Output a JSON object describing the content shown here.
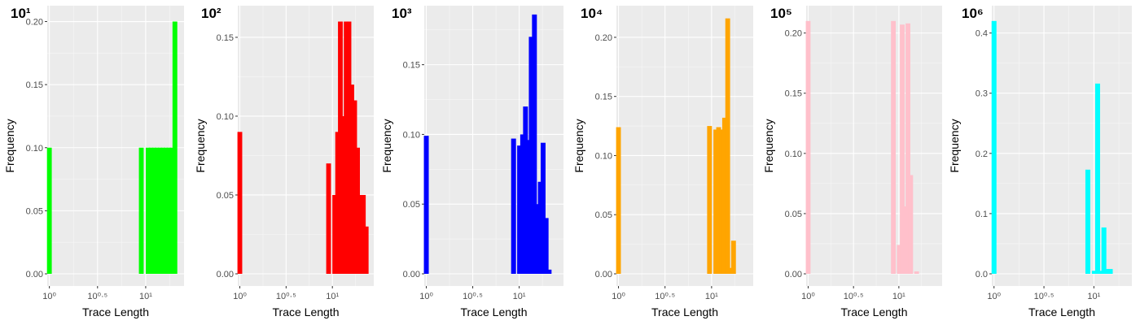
{
  "chart_data": [
    {
      "type": "bar",
      "panel_label": "10¹",
      "color": "#00ff00",
      "xlabel": "Trace Length",
      "ylabel": "Frequency",
      "x_scale": "log10",
      "xlim": [
        0.95,
        25
      ],
      "x_ticks": [
        "10⁰",
        "10⁰·⁵",
        "10¹"
      ],
      "ylim": [
        0,
        0.21
      ],
      "y_ticks": [
        "0.00",
        "0.05",
        "0.10",
        "0.15",
        "0.20"
      ],
      "y_tick_values": [
        0,
        0.05,
        0.1,
        0.15,
        0.2
      ],
      "grid": true,
      "bars": [
        {
          "x": 1.0,
          "value": 0.1
        },
        {
          "x": 9.0,
          "value": 0.1
        },
        {
          "x": 10.6,
          "value": 0.1
        },
        {
          "x": 11.4,
          "value": 0.1
        },
        {
          "x": 12.2,
          "value": 0.1
        },
        {
          "x": 13.1,
          "value": 0.1
        },
        {
          "x": 14.1,
          "value": 0.1
        },
        {
          "x": 15.1,
          "value": 0.1
        },
        {
          "x": 16.2,
          "value": 0.1
        },
        {
          "x": 17.4,
          "value": 0.1
        },
        {
          "x": 18.7,
          "value": 0.1
        },
        {
          "x": 20.1,
          "value": 0.2
        }
      ]
    },
    {
      "type": "bar",
      "panel_label": "10²",
      "color": "#ff0000",
      "xlabel": "Trace Length",
      "ylabel": "Frequency",
      "x_scale": "log10",
      "xlim": [
        0.95,
        28
      ],
      "x_ticks": [
        "10⁰",
        "10⁰·⁵",
        "10¹"
      ],
      "ylim": [
        0,
        0.168
      ],
      "y_ticks": [
        "0.00",
        "0.05",
        "0.10",
        "0.15"
      ],
      "y_tick_values": [
        0,
        0.05,
        0.1,
        0.15
      ],
      "grid": true,
      "bars": [
        {
          "x": 1.0,
          "value": 0.09
        },
        {
          "x": 9.1,
          "value": 0.07
        },
        {
          "x": 10.6,
          "value": 0.05
        },
        {
          "x": 11.4,
          "value": 0.09
        },
        {
          "x": 12.2,
          "value": 0.16
        },
        {
          "x": 13.1,
          "value": 0.1
        },
        {
          "x": 14.1,
          "value": 0.16
        },
        {
          "x": 15.1,
          "value": 0.16
        },
        {
          "x": 16.2,
          "value": 0.12
        },
        {
          "x": 17.4,
          "value": 0.11
        },
        {
          "x": 18.7,
          "value": 0.08
        },
        {
          "x": 20.1,
          "value": 0.05
        },
        {
          "x": 21.6,
          "value": 0.05
        },
        {
          "x": 23.2,
          "value": 0.03
        }
      ]
    },
    {
      "type": "bar",
      "panel_label": "10³",
      "color": "#0000ff",
      "xlabel": "Trace Length",
      "ylabel": "Frequency",
      "x_scale": "log10",
      "xlim": [
        0.95,
        30
      ],
      "x_ticks": [
        "10⁰",
        "10⁰·⁵",
        "10¹"
      ],
      "ylim": [
        0,
        0.19
      ],
      "y_ticks": [
        "0.00",
        "0.05",
        "0.10",
        "0.15"
      ],
      "y_tick_values": [
        0,
        0.05,
        0.1,
        0.15
      ],
      "grid": true,
      "bars": [
        {
          "x": 1.0,
          "value": 0.099
        },
        {
          "x": 8.7,
          "value": 0.097
        },
        {
          "x": 10.1,
          "value": 0.092
        },
        {
          "x": 10.9,
          "value": 0.1
        },
        {
          "x": 11.7,
          "value": 0.12
        },
        {
          "x": 12.6,
          "value": 0.096
        },
        {
          "x": 13.5,
          "value": 0.17
        },
        {
          "x": 14.6,
          "value": 0.186
        },
        {
          "x": 15.7,
          "value": 0.05
        },
        {
          "x": 16.9,
          "value": 0.066
        },
        {
          "x": 18.1,
          "value": 0.094
        },
        {
          "x": 19.5,
          "value": 0.04
        },
        {
          "x": 21.0,
          "value": 0.003
        }
      ]
    },
    {
      "type": "bar",
      "panel_label": "10⁴",
      "color": "#ffa500",
      "xlabel": "Trace Length",
      "ylabel": "Frequency",
      "x_scale": "log10",
      "xlim": [
        0.95,
        28
      ],
      "x_ticks": [
        "10⁰",
        "10⁰·⁵",
        "10¹"
      ],
      "ylim": [
        0,
        0.224
      ],
      "y_ticks": [
        "0.00",
        "0.05",
        "0.10",
        "0.15",
        "0.20"
      ],
      "y_tick_values": [
        0,
        0.05,
        0.1,
        0.15,
        0.2
      ],
      "grid": true,
      "bars": [
        {
          "x": 1.0,
          "value": 0.124
        },
        {
          "x": 9.5,
          "value": 0.125
        },
        {
          "x": 11.1,
          "value": 0.122
        },
        {
          "x": 11.9,
          "value": 0.124
        },
        {
          "x": 12.8,
          "value": 0.122
        },
        {
          "x": 13.8,
          "value": 0.132
        },
        {
          "x": 14.9,
          "value": 0.216
        },
        {
          "x": 16.0,
          "value": 0.005
        },
        {
          "x": 17.2,
          "value": 0.028
        }
      ]
    },
    {
      "type": "bar",
      "panel_label": "10⁵",
      "color": "#ffc0cb",
      "xlabel": "Trace Length",
      "ylabel": "Frequency",
      "x_scale": "log10",
      "xlim": [
        0.95,
        30
      ],
      "x_ticks": [
        "10⁰",
        "10⁰·⁵",
        "10¹"
      ],
      "ylim": [
        0,
        0.22
      ],
      "y_ticks": [
        "0.00",
        "0.05",
        "0.10",
        "0.15",
        "0.20"
      ],
      "y_tick_values": [
        0,
        0.05,
        0.1,
        0.15,
        0.2
      ],
      "grid": true,
      "bars": [
        {
          "x": 1.0,
          "value": 0.21
        },
        {
          "x": 8.7,
          "value": 0.21
        },
        {
          "x": 10.1,
          "value": 0.024
        },
        {
          "x": 10.9,
          "value": 0.207
        },
        {
          "x": 11.7,
          "value": 0.056
        },
        {
          "x": 12.6,
          "value": 0.208
        },
        {
          "x": 13.5,
          "value": 0.082
        },
        {
          "x": 15.7,
          "value": 0.002
        }
      ]
    },
    {
      "type": "bar",
      "panel_label": "10⁶",
      "color": "#00ffff",
      "xlabel": "Trace Length",
      "ylabel": "Frequency",
      "x_scale": "log10",
      "xlim": [
        0.95,
        24
      ],
      "x_ticks": [
        "10⁰",
        "10⁰·⁵",
        "10¹"
      ],
      "ylim": [
        0,
        0.44
      ],
      "y_ticks": [
        "0.0",
        "0.1",
        "0.2",
        "0.3",
        "0.4"
      ],
      "y_tick_values": [
        0,
        0.1,
        0.2,
        0.3,
        0.4
      ],
      "grid": true,
      "bars": [
        {
          "x": 1.0,
          "value": 0.42
        },
        {
          "x": 8.7,
          "value": 0.173
        },
        {
          "x": 10.1,
          "value": 0.005
        },
        {
          "x": 10.9,
          "value": 0.316
        },
        {
          "x": 11.7,
          "value": 0.005
        },
        {
          "x": 12.6,
          "value": 0.077
        },
        {
          "x": 13.5,
          "value": 0.008
        },
        {
          "x": 14.6,
          "value": 0.008
        }
      ]
    }
  ]
}
